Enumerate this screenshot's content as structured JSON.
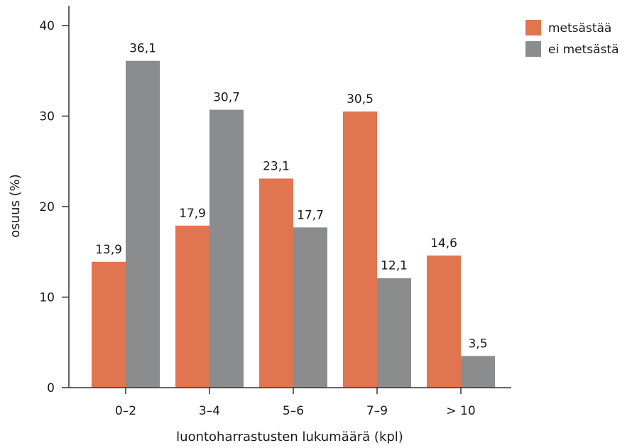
{
  "chart_data": {
    "type": "bar",
    "categories": [
      "0–2",
      "3–4",
      "5–6",
      "7–9",
      "> 10"
    ],
    "series": [
      {
        "name": "metsästää",
        "color": "#e07550",
        "values": [
          13.9,
          17.9,
          23.1,
          30.5,
          14.6
        ],
        "labels": [
          "13,9",
          "17,9",
          "23,1",
          "30,5",
          "14,6"
        ]
      },
      {
        "name": "ei metsästä",
        "color": "#8a8c8e",
        "values": [
          36.1,
          30.7,
          17.7,
          12.1,
          3.5
        ],
        "labels": [
          "36,1",
          "30,7",
          "17,7",
          "12,1",
          "3,5"
        ]
      }
    ],
    "xlabel": "luontoharrastusten lukumäärä (kpl)",
    "ylabel": "osuus (%)",
    "ylim": [
      0,
      40
    ],
    "yticks": [
      0,
      10,
      20,
      30,
      40
    ],
    "grid": false,
    "legend": "top-right"
  }
}
